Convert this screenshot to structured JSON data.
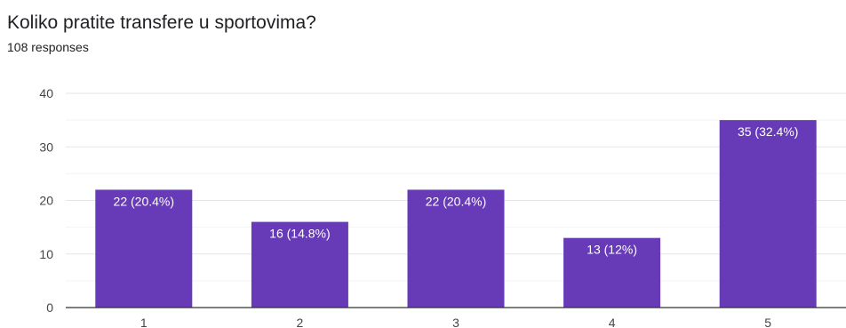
{
  "question": "Koliko pratite transfere u sportovima?",
  "responses": "108 responses",
  "chart_data": {
    "type": "bar",
    "categories": [
      "1",
      "2",
      "3",
      "4",
      "5"
    ],
    "values": [
      22,
      16,
      22,
      13,
      35
    ],
    "data_labels": [
      "22 (20.4%)",
      "16 (14.8%)",
      "22 (20.4%)",
      "13 (12%)",
      "35 (32.4%)"
    ],
    "yticks": [
      0,
      10,
      20,
      30,
      40
    ],
    "ylim": [
      0,
      40
    ],
    "grid": true,
    "bar_color": "#673ab7"
  }
}
